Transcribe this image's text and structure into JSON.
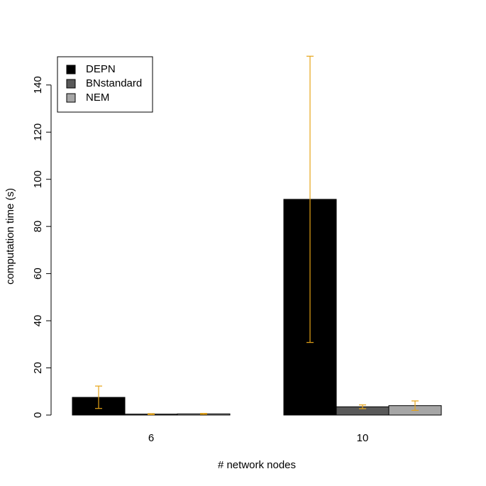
{
  "chart_data": {
    "type": "bar",
    "categories": [
      "6",
      "10"
    ],
    "xlabel": "# network nodes",
    "ylabel": "computation time (s)",
    "ylim": [
      0,
      152
    ],
    "yticks": [
      0,
      20,
      40,
      60,
      80,
      100,
      120,
      140
    ],
    "grid": false,
    "legend_position": "top-left",
    "error_bar_color": "#e6a417",
    "series": [
      {
        "name": "DEPN",
        "color": "#000000",
        "values": [
          7.5,
          91.5
        ],
        "error_low": [
          2.8,
          30.8
        ],
        "error_high": [
          12.3,
          152.2
        ]
      },
      {
        "name": "BNstandard",
        "color": "#595959",
        "values": [
          0.4,
          3.5
        ],
        "error_low": [
          0.2,
          2.7
        ],
        "error_high": [
          0.6,
          4.3
        ]
      },
      {
        "name": "NEM",
        "color": "#a6a6a6",
        "values": [
          0.5,
          4.0
        ],
        "error_low": [
          0.3,
          2.0
        ],
        "error_high": [
          0.7,
          6.0
        ]
      }
    ]
  }
}
